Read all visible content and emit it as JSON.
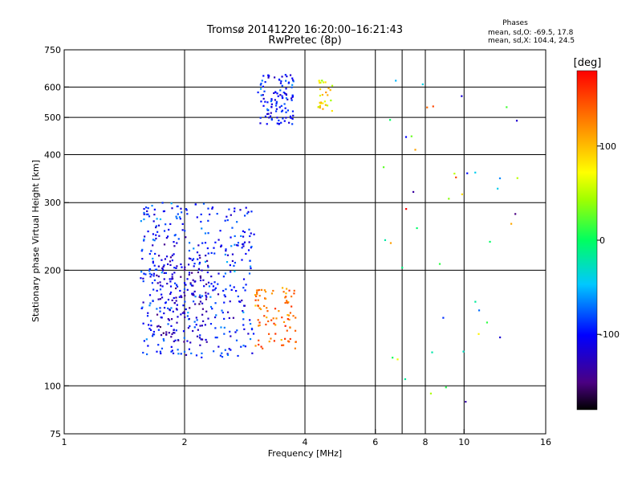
{
  "chart_data": {
    "type": "scatter",
    "title": "Tromsø 20141220 16:20:00–16:21:43",
    "subtitle": "RwPretec (8p)",
    "xlabel": "Frequency [MHz]",
    "ylabel": "Stationary phase Virtual Height [km]",
    "x_scale": "log",
    "y_scale": "log",
    "xlim": [
      1,
      16
    ],
    "ylim": [
      75,
      750
    ],
    "x_ticks": [
      1,
      2,
      4,
      6,
      8,
      10,
      16
    ],
    "y_ticks": [
      75,
      100,
      200,
      300,
      400,
      500,
      600,
      750
    ],
    "grid_x": [
      2,
      4,
      6,
      7,
      8,
      10
    ],
    "grid_y": [
      100,
      200,
      300,
      400,
      500,
      600
    ],
    "grid": true,
    "phases_info": {
      "heading": "Phases",
      "line1": "mean, sd,O: -69.5, 17.8",
      "line2": "mean, sd,X: 104.4, 24.5"
    },
    "colorbar": {
      "label": "[deg]",
      "range": [
        -180,
        180
      ],
      "ticks": [
        100,
        0,
        -100
      ]
    },
    "clusters": [
      {
        "name": "",
        "phase_mean": -95,
        "phase_sd": 25,
        "count": 420,
        "x_range": [
          1.55,
          3.0
        ],
        "y_range": [
          118,
          300
        ]
      },
      {
        "name": "",
        "phase_mean": -130,
        "phase_sd": 20,
        "count": 120,
        "x_range": [
          1.7,
          2.3
        ],
        "y_range": [
          130,
          220
        ]
      },
      {
        "name": "",
        "phase_mean": 130,
        "phase_sd": 25,
        "count": 90,
        "x_range": [
          3.0,
          3.8
        ],
        "y_range": [
          125,
          180
        ]
      },
      {
        "name": "",
        "phase_mean": -100,
        "phase_sd": 25,
        "count": 110,
        "x_range": [
          3.05,
          3.75
        ],
        "y_range": [
          480,
          650
        ]
      },
      {
        "name": "",
        "phase_mean": 80,
        "phase_sd": 40,
        "count": 30,
        "x_range": [
          4.3,
          4.7
        ],
        "y_range": [
          520,
          630
        ]
      },
      {
        "name": "",
        "phase_mean": 0,
        "phase_sd": 120,
        "count": 45,
        "x_range": [
          6.1,
          14.0
        ],
        "y_range": [
          90,
          700
        ]
      }
    ]
  }
}
